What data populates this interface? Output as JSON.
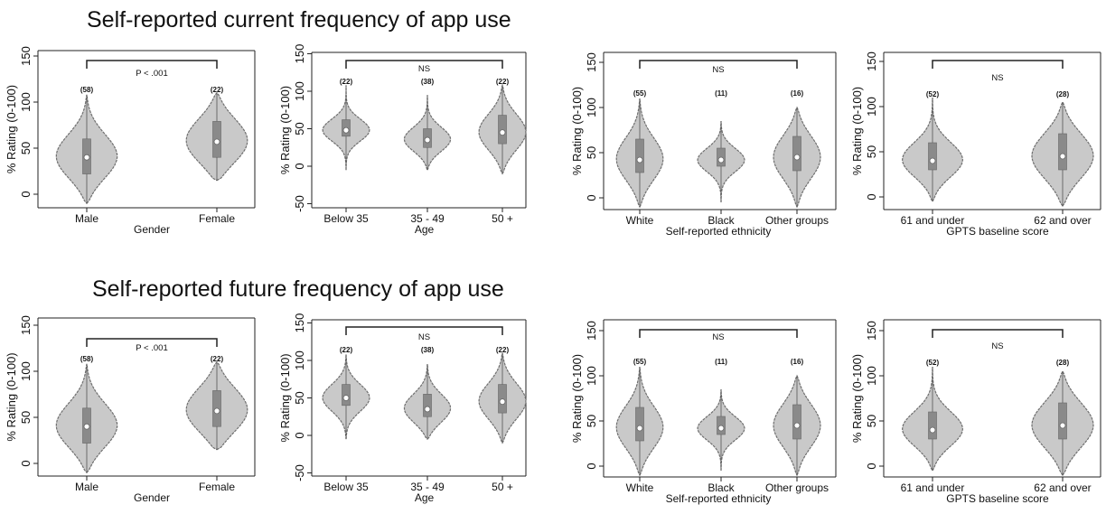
{
  "sections": [
    {
      "title": "Self-reported current frequency of app use"
    },
    {
      "title": "Self-reported future frequency of app use"
    }
  ],
  "ylabel": "% Rating (0-100)",
  "chart_data": [
    {
      "type": "violin",
      "section": 0,
      "xlabel": "Gender",
      "ylabel": "% Rating (0-100)",
      "ylim": [
        -10,
        150
      ],
      "yticks": [
        0,
        50,
        100,
        150
      ],
      "categories": [
        "Male",
        "Female"
      ],
      "counts": [
        "(58)",
        "(22)"
      ],
      "significance": "P < .001",
      "medians": [
        40,
        57
      ],
      "q1": [
        22,
        40
      ],
      "q3": [
        60,
        79
      ],
      "min": [
        -10,
        15
      ],
      "max": [
        108,
        110
      ]
    },
    {
      "type": "violin",
      "section": 0,
      "xlabel": "Age",
      "ylabel": "% Rating (0-100)",
      "ylim": [
        -55,
        155
      ],
      "yticks": [
        -50,
        0,
        50,
        100,
        150
      ],
      "categories": [
        "Below 35",
        "35 - 49",
        "50 +"
      ],
      "counts": [
        "(22)",
        "(38)",
        "(22)"
      ],
      "significance": "NS",
      "medians": [
        48,
        35,
        45
      ],
      "q1": [
        40,
        25,
        30
      ],
      "q3": [
        62,
        50,
        68
      ],
      "min": [
        -5,
        -5,
        -10
      ],
      "max": [
        108,
        95,
        108
      ]
    },
    {
      "type": "violin",
      "section": 0,
      "xlabel": "Self-reported ethnicity",
      "ylabel": "% Rating (0-100)",
      "ylim": [
        -10,
        150
      ],
      "yticks": [
        0,
        50,
        100,
        150
      ],
      "categories": [
        "White",
        "Black",
        "Other groups"
      ],
      "counts": [
        "(55)",
        "(11)",
        "(16)"
      ],
      "significance": "NS",
      "medians": [
        42,
        42,
        45
      ],
      "q1": [
        28,
        35,
        30
      ],
      "q3": [
        65,
        55,
        68
      ],
      "min": [
        -10,
        -5,
        -10
      ],
      "max": [
        110,
        85,
        100
      ]
    },
    {
      "type": "violin",
      "section": 0,
      "xlabel": "GPTS baseline score",
      "ylabel": "% Rating (0-100)",
      "ylim": [
        -10,
        150
      ],
      "yticks": [
        0,
        50,
        100,
        150
      ],
      "categories": [
        "61 and under",
        "62 and over"
      ],
      "counts": [
        "(52)",
        "(28)"
      ],
      "significance": "NS",
      "medians": [
        40,
        45
      ],
      "q1": [
        30,
        30
      ],
      "q3": [
        60,
        70
      ],
      "min": [
        -5,
        -10
      ],
      "max": [
        110,
        105
      ]
    },
    {
      "type": "violin",
      "section": 1,
      "xlabel": "Gender",
      "ylabel": "% Rating (0-100)",
      "ylim": [
        -10,
        150
      ],
      "yticks": [
        0,
        50,
        100,
        150
      ],
      "categories": [
        "Male",
        "Female"
      ],
      "counts": [
        "(58)",
        "(22)"
      ],
      "significance": "P < .001",
      "medians": [
        40,
        57
      ],
      "q1": [
        22,
        40
      ],
      "q3": [
        60,
        79
      ],
      "min": [
        -10,
        15
      ],
      "max": [
        108,
        110
      ]
    },
    {
      "type": "violin",
      "section": 1,
      "xlabel": "Age",
      "ylabel": "% Rating (0-100)",
      "ylim": [
        -55,
        155
      ],
      "yticks": [
        -50,
        0,
        50,
        100,
        150
      ],
      "categories": [
        "Below 35",
        "35 - 49",
        "50 +"
      ],
      "counts": [
        "(22)",
        "(38)",
        "(22)"
      ],
      "significance": "NS",
      "medians": [
        50,
        35,
        45
      ],
      "q1": [
        40,
        25,
        30
      ],
      "q3": [
        68,
        55,
        68
      ],
      "min": [
        -5,
        -5,
        -10
      ],
      "max": [
        108,
        95,
        110
      ]
    },
    {
      "type": "violin",
      "section": 1,
      "xlabel": "Self-reported ethnicity",
      "ylabel": "% Rating (0-100)",
      "ylim": [
        -10,
        150
      ],
      "yticks": [
        0,
        50,
        100,
        150
      ],
      "categories": [
        "White",
        "Black",
        "Other groups"
      ],
      "counts": [
        "(55)",
        "(11)",
        "(16)"
      ],
      "significance": "NS",
      "medians": [
        42,
        42,
        45
      ],
      "q1": [
        28,
        35,
        30
      ],
      "q3": [
        65,
        55,
        68
      ],
      "min": [
        -10,
        -5,
        -10
      ],
      "max": [
        110,
        85,
        100
      ]
    },
    {
      "type": "violin",
      "section": 1,
      "xlabel": "GPTS baseline score",
      "ylabel": "% Rating (0-100)",
      "ylim": [
        -10,
        150
      ],
      "yticks": [
        0,
        50,
        100,
        150
      ],
      "categories": [
        "61 and under",
        "62 and over"
      ],
      "counts": [
        "(52)",
        "(28)"
      ],
      "significance": "NS",
      "medians": [
        40,
        45
      ],
      "q1": [
        30,
        30
      ],
      "q3": [
        60,
        70
      ],
      "min": [
        -5,
        -10
      ],
      "max": [
        110,
        105
      ]
    }
  ],
  "colors": {
    "violin_fill": "#c9c9c9",
    "violin_stroke": "#6f6f6f",
    "box_fill": "#8a8a8a",
    "median_fill": "#ffffff",
    "axis": "#222222",
    "text": "#111111"
  }
}
